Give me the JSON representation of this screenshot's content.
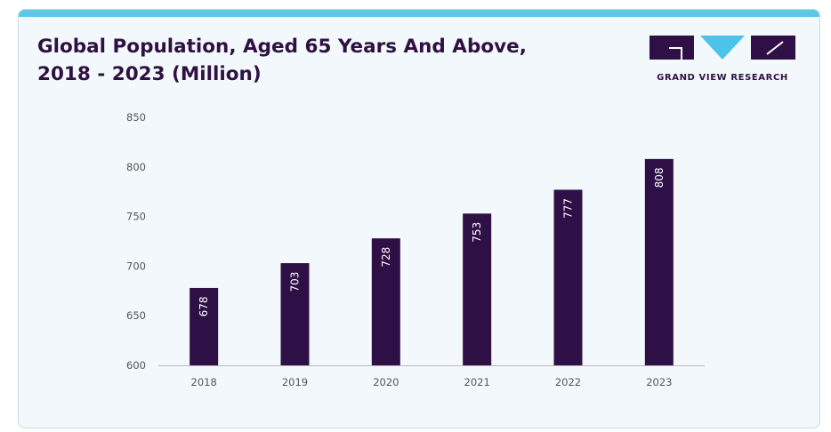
{
  "header": {
    "title_line1": "Global Population, Aged 65 Years And Above,",
    "title_line2": "2018 - 2023 (Million)"
  },
  "logo": {
    "text": "GRAND VIEW RESEARCH",
    "icon": "grand-view-research-logo"
  },
  "colors": {
    "accent_bar": "#5bc8e8",
    "bar": "#2f1046",
    "logo_primary": "#2f1046",
    "logo_accent": "#4cc3ea",
    "background": "#f3f8fc"
  },
  "chart_data": {
    "type": "bar",
    "title": "Global Population, Aged 65 Years And Above, 2018 - 2023 (Million)",
    "categories": [
      "2018",
      "2019",
      "2020",
      "2021",
      "2022",
      "2023"
    ],
    "values": [
      678,
      703,
      728,
      753,
      777,
      808
    ],
    "data_labels": [
      "678",
      "703",
      "728",
      "753",
      "777",
      "808"
    ],
    "yticks": [
      600,
      650,
      700,
      750,
      800,
      850
    ],
    "ylim": [
      600,
      850
    ],
    "xlabel": "",
    "ylabel": "",
    "grid": false,
    "legend": "none"
  }
}
